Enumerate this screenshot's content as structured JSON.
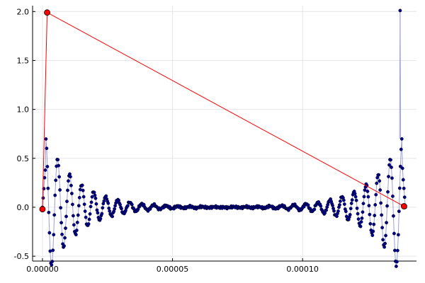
{
  "chart_data": {
    "type": "scatter",
    "xlim": [
      -3.8e-06,
      0.0001438
    ],
    "ylim": [
      -0.55,
      2.06
    ],
    "grid": true,
    "legend": "none",
    "x_ticks": [
      {
        "value": 0.0,
        "label": "0.00000"
      },
      {
        "value": 5e-05,
        "label": "0.00005"
      },
      {
        "value": 0.0001,
        "label": "0.00010"
      }
    ],
    "y_ticks": [
      {
        "value": -0.5,
        "label": "-0.5"
      },
      {
        "value": 0.0,
        "label": "0.0"
      },
      {
        "value": 0.5,
        "label": "0.5"
      },
      {
        "value": 1.0,
        "label": "1.0"
      },
      {
        "value": 1.5,
        "label": "1.5"
      },
      {
        "value": 2.0,
        "label": "2.0"
      }
    ],
    "series": [
      {
        "style": "thin line with dense filled markers",
        "color": "#00008b",
        "line_color": "#9aa0d8",
        "x_start": 0.0,
        "x_end": 0.0001395,
        "n_points": 520,
        "envelope_amplitude": 0.72,
        "approx_shape": "symmetric damped oscillation about x=0.00007; peaks ~0.80 near both ends, troughs ~-0.47, flat near 0 in the middle",
        "approx_values": [
          {
            "x": 1e-06,
            "y": 0.22
          },
          {
            "x": 2.5e-06,
            "y": 0.8
          },
          {
            "x": 7e-06,
            "y": -0.47
          },
          {
            "x": 1.2e-05,
            "y": 0.29
          },
          {
            "x": 1.7e-05,
            "y": -0.18
          },
          {
            "x": 2.2e-05,
            "y": 0.11
          },
          {
            "x": 7e-05,
            "y": 0.0
          },
          {
            "x": 0.000118,
            "y": 0.11
          },
          {
            "x": 0.000123,
            "y": -0.18
          },
          {
            "x": 0.000128,
            "y": 0.29
          },
          {
            "x": 0.000133,
            "y": -0.47
          },
          {
            "x": 0.0001375,
            "y": 0.8
          },
          {
            "x": 0.000139,
            "y": 0.22
          }
        ],
        "spike": {
          "x": 0.0001375,
          "y": 2.01
        }
      },
      {
        "style": "line with large markers",
        "color": "#ff0000",
        "points": [
          {
            "x": 0.0,
            "y": -0.02
          },
          {
            "x": 1.8e-06,
            "y": 1.99
          },
          {
            "x": 0.000139,
            "y": 0.01
          }
        ]
      }
    ]
  }
}
